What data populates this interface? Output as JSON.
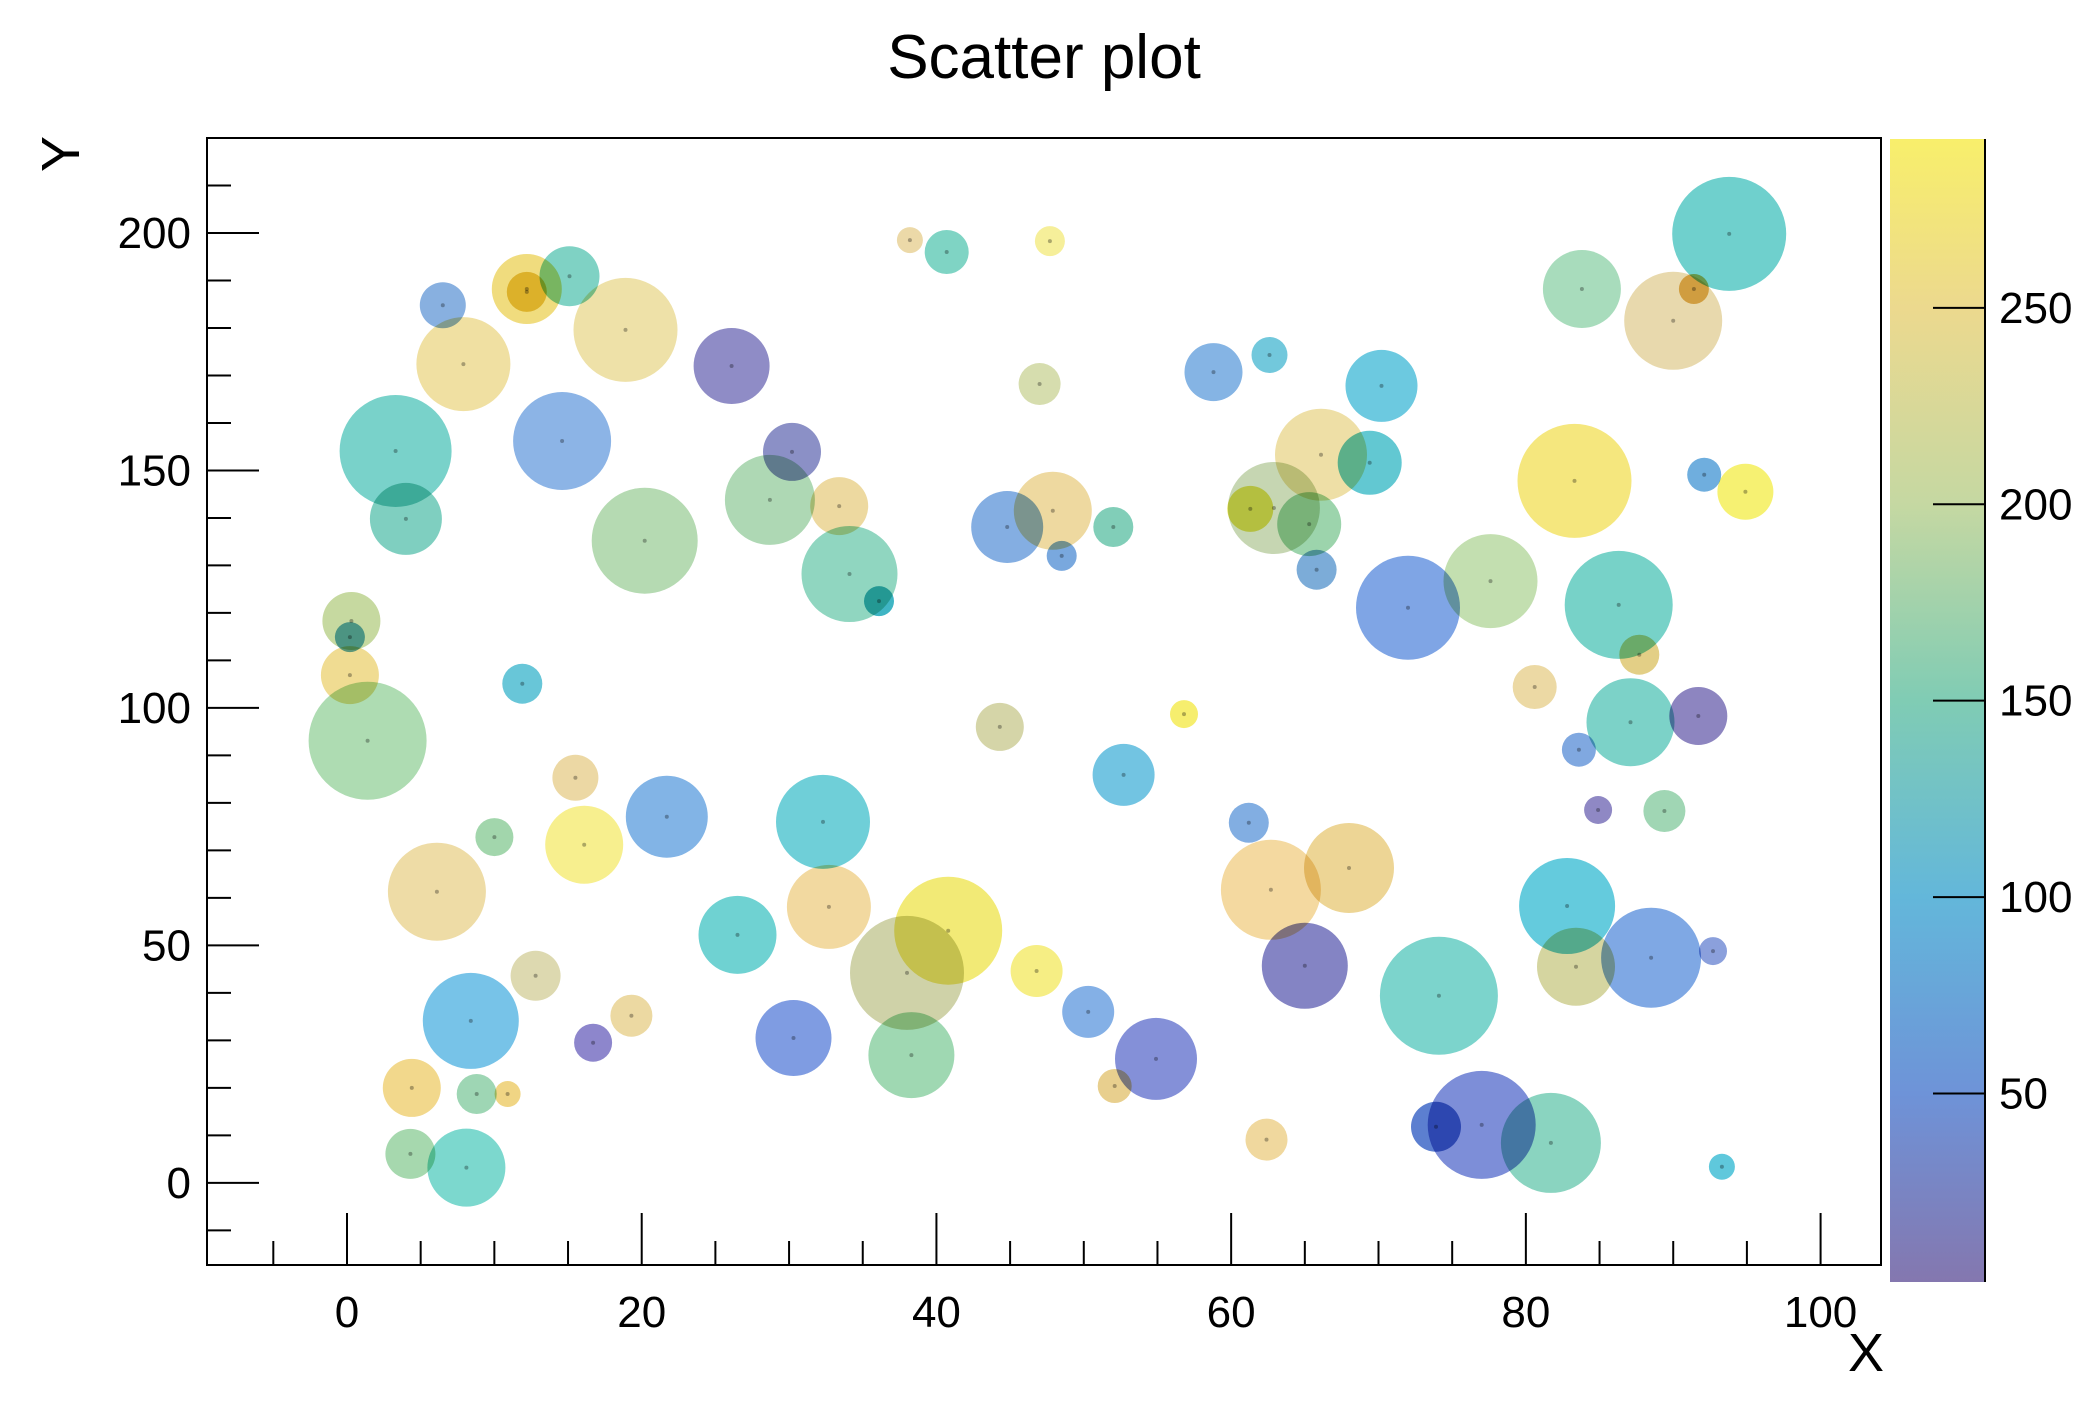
{
  "title": "Scatter plot",
  "chart_data": {
    "type": "scatter",
    "title": "Scatter plot",
    "xlabel": "X",
    "ylabel": "Y",
    "xlim": [
      -9.5,
      104.1
    ],
    "ylim": [
      -17.3,
      220.0
    ],
    "x_ticks": [
      0,
      20,
      40,
      60,
      80,
      100
    ],
    "y_ticks": [
      0,
      50,
      100,
      150,
      200
    ],
    "x_minor_step": 5,
    "y_minor_step": 10,
    "grid": false,
    "legend_position": "none",
    "colorbar": {
      "ticks": [
        50,
        100,
        150,
        200,
        250
      ],
      "range": [
        2,
        293
      ],
      "gradient": [
        {
          "v": 2,
          "color": "#8477af"
        },
        {
          "v": 50,
          "color": "#6e93d8"
        },
        {
          "v": 100,
          "color": "#63b7da"
        },
        {
          "v": 150,
          "color": "#80ccb4"
        },
        {
          "v": 200,
          "color": "#c5d8a2"
        },
        {
          "v": 250,
          "color": "#ecd98e"
        },
        {
          "v": 293,
          "color": "#f8ef6b"
        }
      ]
    },
    "points": [
      {
        "x": 6.5,
        "y": 184.8,
        "r": 23,
        "c": 70,
        "color": "#88b0e0"
      },
      {
        "x": 12.2,
        "y": 188.2,
        "r": 35,
        "c": 262,
        "color": "#f0dc7e"
      },
      {
        "x": 12.2,
        "y": 187.6,
        "r": 20,
        "c": 268,
        "color": "#eacd55"
      },
      {
        "x": 15.1,
        "y": 190.9,
        "r": 30,
        "c": 148,
        "color": "#7fd2c4"
      },
      {
        "x": 18.9,
        "y": 179.6,
        "r": 52,
        "c": 235,
        "color": "#eee1a8"
      },
      {
        "x": 26.1,
        "y": 172.0,
        "r": 38,
        "c": 20,
        "color": "#8f8cc6"
      },
      {
        "x": 7.9,
        "y": 172.4,
        "r": 47,
        "c": 240,
        "color": "#f0e0a2"
      },
      {
        "x": 3.3,
        "y": 154.1,
        "r": 56,
        "c": 135,
        "color": "#79d2ca"
      },
      {
        "x": 14.6,
        "y": 156.2,
        "r": 49,
        "c": 70,
        "color": "#8cb4e6"
      },
      {
        "x": 4.0,
        "y": 139.8,
        "r": 36,
        "c": 145,
        "color": "#7fcfc0"
      },
      {
        "x": 20.2,
        "y": 135.2,
        "r": 53,
        "c": 170,
        "color": "#b5dab2"
      },
      {
        "x": 28.7,
        "y": 143.8,
        "r": 45,
        "c": 168,
        "color": "#aed8b4"
      },
      {
        "x": 0.3,
        "y": 118.3,
        "r": 29,
        "c": 190,
        "color": "#c6d9a0"
      },
      {
        "x": 0.2,
        "y": 114.9,
        "r": 15,
        "c": 95,
        "color": "#62aed0"
      },
      {
        "x": 0.2,
        "y": 106.9,
        "r": 29,
        "c": 255,
        "color": "#f0dc92"
      },
      {
        "x": 11.9,
        "y": 105.1,
        "r": 20,
        "c": 105,
        "color": "#68c6d8"
      },
      {
        "x": 38.2,
        "y": 198.5,
        "r": 13,
        "c": 235,
        "color": "#ecd9a8"
      },
      {
        "x": 40.7,
        "y": 196.0,
        "r": 22,
        "c": 148,
        "color": "#7fd4c4"
      },
      {
        "x": 47.7,
        "y": 198.3,
        "r": 15,
        "c": 275,
        "color": "#f6ef9a"
      },
      {
        "x": 47.0,
        "y": 168.2,
        "r": 21,
        "c": 205,
        "color": "#d6ddae"
      },
      {
        "x": 58.8,
        "y": 170.7,
        "r": 29,
        "c": 72,
        "color": "#85b4e4"
      },
      {
        "x": 62.6,
        "y": 174.3,
        "r": 18,
        "c": 108,
        "color": "#72c8dc"
      },
      {
        "x": 30.2,
        "y": 153.9,
        "r": 29,
        "c": 22,
        "color": "#8b90c6"
      },
      {
        "x": 33.4,
        "y": 142.5,
        "r": 29,
        "c": 238,
        "color": "#edd9a0"
      },
      {
        "x": 34.1,
        "y": 128.2,
        "r": 48,
        "c": 152,
        "color": "#90d6c0"
      },
      {
        "x": 36.1,
        "y": 122.5,
        "r": 15,
        "c": 100,
        "color": "#3fb5c4"
      },
      {
        "x": 44.8,
        "y": 138.1,
        "r": 36,
        "c": 65,
        "color": "#84aee2"
      },
      {
        "x": 47.9,
        "y": 141.5,
        "r": 39,
        "c": 238,
        "color": "#eed9a0"
      },
      {
        "x": 52.0,
        "y": 138.1,
        "r": 20,
        "c": 150,
        "color": "#81ceb8"
      },
      {
        "x": 48.5,
        "y": 132.0,
        "r": 15,
        "c": 60,
        "color": "#79a8de"
      },
      {
        "x": 66.1,
        "y": 153.3,
        "r": 46,
        "c": 240,
        "color": "#eedfa6"
      },
      {
        "x": 62.9,
        "y": 142.1,
        "r": 46,
        "c": 185,
        "color": "#c6d6b2"
      },
      {
        "x": 61.3,
        "y": 141.9,
        "r": 23,
        "c": 265,
        "color": "#e8e45c"
      },
      {
        "x": 65.3,
        "y": 138.7,
        "r": 32,
        "c": 162,
        "color": "#9cd4ac"
      },
      {
        "x": 65.8,
        "y": 129.1,
        "r": 20,
        "c": 68,
        "color": "#7cacd8"
      },
      {
        "x": 93.8,
        "y": 199.8,
        "r": 57,
        "c": 125,
        "color": "#6fd0cd"
      },
      {
        "x": 83.8,
        "y": 188.2,
        "r": 39,
        "c": 168,
        "color": "#a8dcbc"
      },
      {
        "x": 90.0,
        "y": 181.5,
        "r": 49,
        "c": 230,
        "color": "#e8d9ad"
      },
      {
        "x": 91.4,
        "y": 188.2,
        "r": 15,
        "c": 250,
        "color": "#e5b95e"
      },
      {
        "x": 70.2,
        "y": 167.8,
        "r": 36,
        "c": 105,
        "color": "#6cc9e0"
      },
      {
        "x": 69.4,
        "y": 151.6,
        "r": 32,
        "c": 108,
        "color": "#62c8d2"
      },
      {
        "x": 83.3,
        "y": 147.8,
        "r": 57,
        "c": 275,
        "color": "#f5e77e"
      },
      {
        "x": 92.1,
        "y": 149.1,
        "r": 17,
        "c": 75,
        "color": "#6faede"
      },
      {
        "x": 94.9,
        "y": 145.5,
        "r": 28,
        "c": 285,
        "color": "#f6f172"
      },
      {
        "x": 77.6,
        "y": 126.7,
        "r": 47,
        "c": 180,
        "color": "#c3dfb0"
      },
      {
        "x": 72.0,
        "y": 121.1,
        "r": 52,
        "c": 55,
        "color": "#7fa5e5"
      },
      {
        "x": 86.3,
        "y": 121.7,
        "r": 54,
        "c": 135,
        "color": "#77d2c8"
      },
      {
        "x": 87.7,
        "y": 111.2,
        "r": 20,
        "c": 245,
        "color": "#e3cf86"
      },
      {
        "x": 80.6,
        "y": 104.4,
        "r": 22,
        "c": 238,
        "color": "#ecd9a4"
      },
      {
        "x": 1.4,
        "y": 93.1,
        "r": 59,
        "c": 170,
        "color": "#aedcb2"
      },
      {
        "x": 15.5,
        "y": 85.3,
        "r": 23,
        "c": 238,
        "color": "#ecd8a4"
      },
      {
        "x": 21.7,
        "y": 77.1,
        "r": 41,
        "c": 70,
        "color": "#82b4e6"
      },
      {
        "x": 16.1,
        "y": 71.2,
        "r": 39,
        "c": 272,
        "color": "#f7ef8e"
      },
      {
        "x": 10.0,
        "y": 72.8,
        "r": 19,
        "c": 165,
        "color": "#a2d6ac"
      },
      {
        "x": 6.1,
        "y": 61.3,
        "r": 49,
        "c": 240,
        "color": "#eedca6"
      },
      {
        "x": 26.5,
        "y": 52.2,
        "r": 39,
        "c": 122,
        "color": "#6fd2d2"
      },
      {
        "x": 12.8,
        "y": 43.6,
        "r": 25,
        "c": 210,
        "color": "#ddd9b0"
      },
      {
        "x": 8.4,
        "y": 34.1,
        "r": 48,
        "c": 88,
        "color": "#77c3e8"
      },
      {
        "x": 19.3,
        "y": 35.2,
        "r": 21,
        "c": 238,
        "color": "#ecd9a2"
      },
      {
        "x": 16.7,
        "y": 29.5,
        "r": 19,
        "c": 18,
        "color": "#8d86cc"
      },
      {
        "x": 4.4,
        "y": 20.0,
        "r": 29,
        "c": 250,
        "color": "#f2d88c"
      },
      {
        "x": 8.8,
        "y": 18.7,
        "r": 20,
        "c": 163,
        "color": "#9ed6b4"
      },
      {
        "x": 10.9,
        "y": 18.7,
        "r": 13,
        "c": 252,
        "color": "#f0d584"
      },
      {
        "x": 4.3,
        "y": 6.1,
        "r": 25,
        "c": 168,
        "color": "#a6d8ae"
      },
      {
        "x": 8.1,
        "y": 3.2,
        "r": 39,
        "c": 132,
        "color": "#7cd8ce"
      },
      {
        "x": 44.3,
        "y": 96.0,
        "r": 24,
        "c": 205,
        "color": "#d5d5a8"
      },
      {
        "x": 56.8,
        "y": 98.7,
        "r": 14,
        "c": 282,
        "color": "#f6ee6e"
      },
      {
        "x": 52.7,
        "y": 85.9,
        "r": 31,
        "c": 100,
        "color": "#72c4e2"
      },
      {
        "x": 32.3,
        "y": 76.0,
        "r": 47,
        "c": 115,
        "color": "#6fcfd8"
      },
      {
        "x": 61.2,
        "y": 75.8,
        "r": 20,
        "c": 65,
        "color": "#82aee2"
      },
      {
        "x": 32.7,
        "y": 58.1,
        "r": 42,
        "c": 242,
        "color": "#f2d9a0"
      },
      {
        "x": 62.7,
        "y": 61.7,
        "r": 50,
        "c": 242,
        "color": "#f4d9a0"
      },
      {
        "x": 40.8,
        "y": 53.1,
        "r": 54,
        "c": 278,
        "color": "#f2ea76"
      },
      {
        "x": 38.0,
        "y": 44.2,
        "r": 57,
        "c": 200,
        "color": "#cfd2a8"
      },
      {
        "x": 46.8,
        "y": 44.6,
        "r": 26,
        "c": 272,
        "color": "#f6ee84"
      },
      {
        "x": 50.3,
        "y": 36.0,
        "r": 26,
        "c": 68,
        "color": "#84b0e6"
      },
      {
        "x": 30.3,
        "y": 30.5,
        "r": 38,
        "c": 55,
        "color": "#7f9ce2"
      },
      {
        "x": 38.3,
        "y": 26.9,
        "r": 43,
        "c": 165,
        "color": "#9fd8b2"
      },
      {
        "x": 54.9,
        "y": 26.1,
        "r": 41,
        "c": 35,
        "color": "#8490d8"
      },
      {
        "x": 52.1,
        "y": 20.4,
        "r": 17,
        "c": 245,
        "color": "#e8cf8e"
      },
      {
        "x": 62.4,
        "y": 9.1,
        "r": 21,
        "c": 245,
        "color": "#f0d89e"
      },
      {
        "x": 87.1,
        "y": 97.0,
        "r": 44,
        "c": 135,
        "color": "#7cd2c8"
      },
      {
        "x": 91.7,
        "y": 98.3,
        "r": 29,
        "c": 18,
        "color": "#8d85c0"
      },
      {
        "x": 83.6,
        "y": 91.2,
        "r": 17,
        "c": 65,
        "color": "#80a8e0"
      },
      {
        "x": 84.9,
        "y": 78.5,
        "r": 14,
        "c": 20,
        "color": "#8f88c4"
      },
      {
        "x": 89.4,
        "y": 78.3,
        "r": 21,
        "c": 163,
        "color": "#a0d6b4"
      },
      {
        "x": 68.0,
        "y": 66.3,
        "r": 45,
        "c": 248,
        "color": "#edd595"
      },
      {
        "x": 65.0,
        "y": 45.7,
        "r": 43,
        "c": 20,
        "color": "#8484c4"
      },
      {
        "x": 82.8,
        "y": 58.3,
        "r": 48,
        "c": 108,
        "color": "#64cbdd"
      },
      {
        "x": 83.4,
        "y": 45.5,
        "r": 39,
        "c": 205,
        "color": "#d5d5a0"
      },
      {
        "x": 88.5,
        "y": 47.4,
        "r": 50,
        "c": 65,
        "color": "#7fa8e4"
      },
      {
        "x": 92.7,
        "y": 48.8,
        "r": 14,
        "c": 45,
        "color": "#8ba0dc"
      },
      {
        "x": 74.1,
        "y": 39.4,
        "r": 59,
        "c": 128,
        "color": "#7cd4cc"
      },
      {
        "x": 77.0,
        "y": 12.2,
        "r": 54,
        "c": 38,
        "color": "#7d8ed8"
      },
      {
        "x": 73.9,
        "y": 11.8,
        "r": 25,
        "c": 52,
        "color": "#5c7fd0"
      },
      {
        "x": 81.7,
        "y": 8.4,
        "r": 50,
        "c": 152,
        "color": "#8ad4c0"
      },
      {
        "x": 93.3,
        "y": 3.4,
        "r": 13,
        "c": 110,
        "color": "#5fc8dc"
      }
    ]
  }
}
